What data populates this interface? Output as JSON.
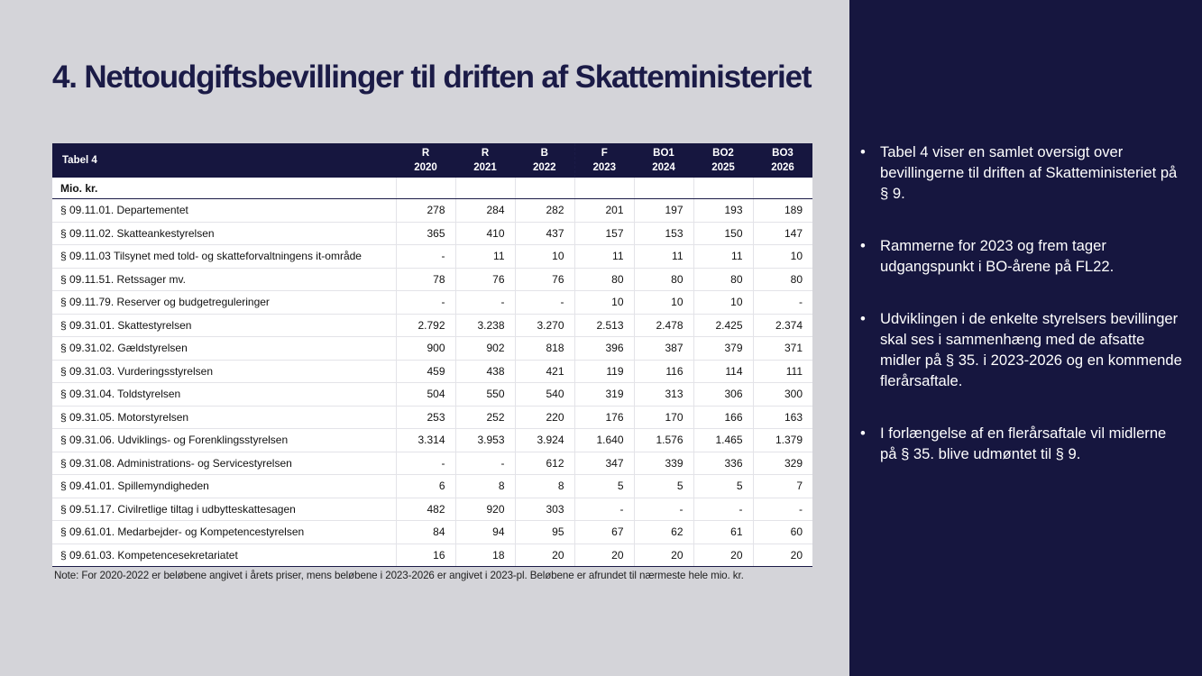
{
  "title": "4. Nettoudgiftsbevillinger til driften af Skatteministeriet",
  "table": {
    "caption": "Tabel 4",
    "columns": [
      {
        "type": "R",
        "year": "2020"
      },
      {
        "type": "R",
        "year": "2021"
      },
      {
        "type": "B",
        "year": "2022"
      },
      {
        "type": "F",
        "year": "2023"
      },
      {
        "type": "BO1",
        "year": "2024"
      },
      {
        "type": "BO2",
        "year": "2025"
      },
      {
        "type": "BO3",
        "year": "2026"
      }
    ],
    "unit": "Mio. kr.",
    "rows": [
      {
        "label": "§ 09.11.01. Departementet",
        "values": [
          "278",
          "284",
          "282",
          "201",
          "197",
          "193",
          "189"
        ]
      },
      {
        "label": "§ 09.11.02. Skatteankestyrelsen",
        "values": [
          "365",
          "410",
          "437",
          "157",
          "153",
          "150",
          "147"
        ]
      },
      {
        "label": "§ 09.11.03 Tilsynet med told- og skatteforvaltningens it-område",
        "values": [
          "-",
          "11",
          "10",
          "11",
          "11",
          "11",
          "10"
        ]
      },
      {
        "label": "§ 09.11.51. Retssager mv.",
        "values": [
          "78",
          "76",
          "76",
          "80",
          "80",
          "80",
          "80"
        ]
      },
      {
        "label": "§ 09.11.79. Reserver og budgetreguleringer",
        "values": [
          "-",
          "-",
          "-",
          "10",
          "10",
          "10",
          "-"
        ]
      },
      {
        "label": "§ 09.31.01. Skattestyrelsen",
        "values": [
          "2.792",
          "3.238",
          "3.270",
          "2.513",
          "2.478",
          "2.425",
          "2.374"
        ]
      },
      {
        "label": "§ 09.31.02. Gældstyrelsen",
        "values": [
          "900",
          "902",
          "818",
          "396",
          "387",
          "379",
          "371"
        ]
      },
      {
        "label": "§ 09.31.03. Vurderingsstyrelsen",
        "values": [
          "459",
          "438",
          "421",
          "119",
          "116",
          "114",
          "111"
        ]
      },
      {
        "label": "§ 09.31.04. Toldstyrelsen",
        "values": [
          "504",
          "550",
          "540",
          "319",
          "313",
          "306",
          "300"
        ]
      },
      {
        "label": "§ 09.31.05. Motorstyrelsen",
        "values": [
          "253",
          "252",
          "220",
          "176",
          "170",
          "166",
          "163"
        ]
      },
      {
        "label": "§ 09.31.06. Udviklings- og Forenklingsstyrelsen",
        "values": [
          "3.314",
          "3.953",
          "3.924",
          "1.640",
          "1.576",
          "1.465",
          "1.379"
        ]
      },
      {
        "label": "§ 09.31.08. Administrations- og Servicestyrelsen",
        "values": [
          "-",
          "-",
          "612",
          "347",
          "339",
          "336",
          "329"
        ]
      },
      {
        "label": "§ 09.41.01. Spillemyndigheden",
        "values": [
          "6",
          "8",
          "8",
          "5",
          "5",
          "5",
          "7"
        ]
      },
      {
        "label": "§ 09.51.17. Civilretlige tiltag i udbytteskattesagen",
        "values": [
          "482",
          "920",
          "303",
          "-",
          "-",
          "-",
          "-"
        ]
      },
      {
        "label": "§ 09.61.01. Medarbejder- og Kompetencestyrelsen",
        "values": [
          "84",
          "94",
          "95",
          "67",
          "62",
          "61",
          "60"
        ]
      },
      {
        "label": "§ 09.61.03. Kompetencesekretariatet",
        "values": [
          "16",
          "18",
          "20",
          "20",
          "20",
          "20",
          "20"
        ]
      }
    ],
    "note": "Note: For 2020-2022 er beløbene angivet i årets priser, mens beløbene i 2023-2026 er angivet i 2023-pl. Beløbene er afrundet til nærmeste hele mio. kr."
  },
  "bullets": [
    "Tabel 4 viser en samlet oversigt over bevillingerne til driften af Skatteministeriet på § 9.",
    "Rammerne for 2023 og frem tager udgangspunkt i BO-årene på FL22.",
    "Udviklingen i de enkelte styrelsers bevillinger skal ses i sammenhæng med de afsatte midler på § 35. i 2023-2026 og en kommende flerårsaftale.",
    "I forlængelse af en flerårsaftale vil midlerne på § 35. blive udmøntet til § 9."
  ],
  "bullet_symbol": "•",
  "colors": {
    "navy": "#16163f",
    "background": "#d4d4d9"
  }
}
